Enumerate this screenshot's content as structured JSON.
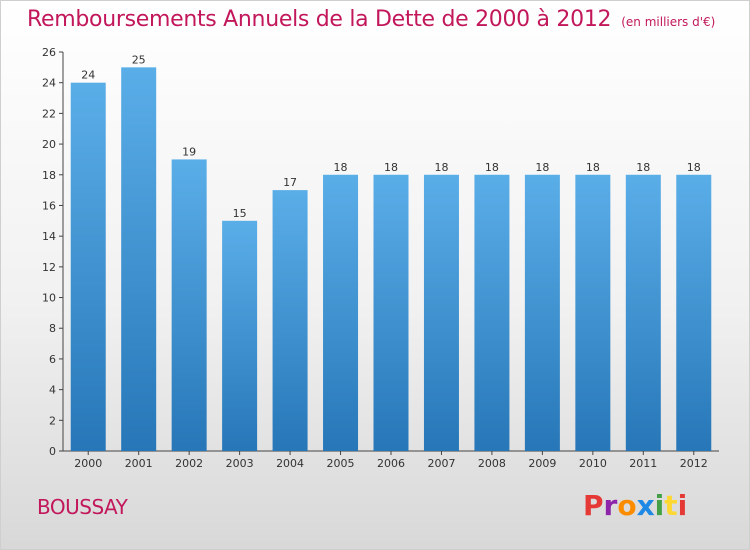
{
  "header": {
    "title": "Remboursements Annuels de la Dette de 2000 à 2012",
    "unit": "(en milliers d'€)"
  },
  "footer": {
    "commune": "BOUSSAY",
    "logo_letters": [
      "P",
      "r",
      "o",
      "x",
      "i",
      "t",
      "i"
    ]
  },
  "colors": {
    "title": "#c2185b",
    "bar_top": "#5aaee8",
    "bar_bottom": "#2777b8"
  },
  "chart_data": {
    "type": "bar",
    "categories": [
      "2000",
      "2001",
      "2002",
      "2003",
      "2004",
      "2005",
      "2006",
      "2007",
      "2008",
      "2009",
      "2010",
      "2011",
      "2012"
    ],
    "values": [
      24,
      25,
      19,
      15,
      17,
      18,
      18,
      18,
      18,
      18,
      18,
      18,
      18
    ],
    "title": "Remboursements Annuels de la Dette de 2000 à 2012",
    "ylim": [
      0,
      26
    ],
    "yticks": [
      0,
      2,
      4,
      6,
      8,
      10,
      12,
      14,
      16,
      18,
      20,
      22,
      24,
      26
    ],
    "grid": false,
    "data_labels": true
  }
}
